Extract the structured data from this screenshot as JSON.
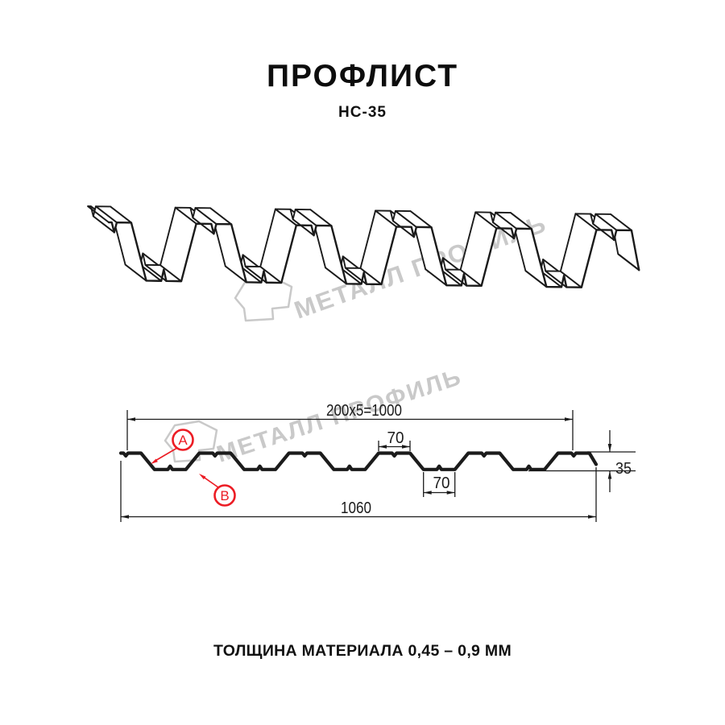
{
  "header": {
    "title": "ПРОФЛИСТ",
    "subtitle": "НС-35"
  },
  "watermark": {
    "brand": "МЕТАЛЛ ПРОФИЛЬ"
  },
  "section": {
    "dimensions": {
      "coverage": "200x5=1000",
      "rib_top_width": "70",
      "rib_bottom_width": "70",
      "profile_height": "35",
      "overall_width": "1060"
    },
    "callouts": {
      "a": "А",
      "b": "В"
    }
  },
  "footer": {
    "thickness_note": "ТОЛЩИНА МАТЕРИАЛА 0,45 – 0,9 ММ"
  },
  "colors": {
    "line_black": "#1b1b1b",
    "accent_red": "#ec1c24",
    "watermark_gray": "#c9c9c9"
  }
}
